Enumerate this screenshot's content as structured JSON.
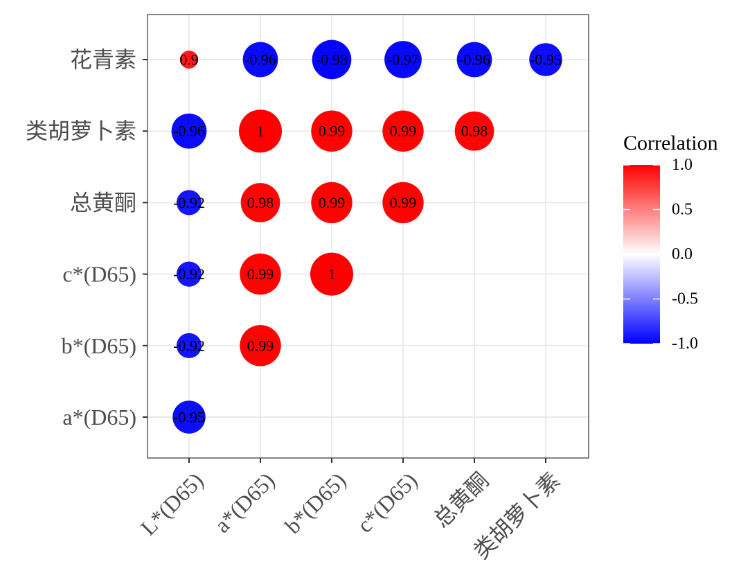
{
  "chart_data": {
    "type": "heatmap",
    "title": "",
    "x_categories": [
      "L*(D65)",
      "a*(D65)",
      "b*(D65)",
      "c*(D65)",
      "总黄酮",
      "类胡萝卜素"
    ],
    "y_categories": [
      "a*(D65)",
      "b*(D65)",
      "c*(D65)",
      "总黄酮",
      "类胡萝卜素",
      "花青素"
    ],
    "cells": [
      {
        "x": "L*(D65)",
        "y": "a*(D65)",
        "value": -0.95,
        "label": "-0.95"
      },
      {
        "x": "L*(D65)",
        "y": "b*(D65)",
        "value": -0.92,
        "label": "-0.92"
      },
      {
        "x": "a*(D65)",
        "y": "b*(D65)",
        "value": 0.99,
        "label": "0.99"
      },
      {
        "x": "L*(D65)",
        "y": "c*(D65)",
        "value": -0.92,
        "label": "-0.92"
      },
      {
        "x": "a*(D65)",
        "y": "c*(D65)",
        "value": 0.99,
        "label": "0.99"
      },
      {
        "x": "b*(D65)",
        "y": "c*(D65)",
        "value": 1.0,
        "label": "1"
      },
      {
        "x": "L*(D65)",
        "y": "总黄酮",
        "value": -0.92,
        "label": "-0.92"
      },
      {
        "x": "a*(D65)",
        "y": "总黄酮",
        "value": 0.98,
        "label": "0.98"
      },
      {
        "x": "b*(D65)",
        "y": "总黄酮",
        "value": 0.99,
        "label": "0.99"
      },
      {
        "x": "c*(D65)",
        "y": "总黄酮",
        "value": 0.99,
        "label": "0.99"
      },
      {
        "x": "L*(D65)",
        "y": "类胡萝卜素",
        "value": -0.96,
        "label": "-0.96"
      },
      {
        "x": "a*(D65)",
        "y": "类胡萝卜素",
        "value": 1.0,
        "label": "1"
      },
      {
        "x": "b*(D65)",
        "y": "类胡萝卜素",
        "value": 0.99,
        "label": "0.99"
      },
      {
        "x": "c*(D65)",
        "y": "类胡萝卜素",
        "value": 0.99,
        "label": "0.99"
      },
      {
        "x": "总黄酮",
        "y": "类胡萝卜素",
        "value": 0.98,
        "label": "0.98"
      },
      {
        "x": "L*(D65)",
        "y": "花青素",
        "value": 0.9,
        "label": "0.9"
      },
      {
        "x": "a*(D65)",
        "y": "花青素",
        "value": -0.96,
        "label": "-0.96"
      },
      {
        "x": "b*(D65)",
        "y": "花青素",
        "value": -0.98,
        "label": "-0.98"
      },
      {
        "x": "c*(D65)",
        "y": "花青素",
        "value": -0.97,
        "label": "-0.97"
      },
      {
        "x": "总黄酮",
        "y": "花青素",
        "value": -0.96,
        "label": "-0.96"
      },
      {
        "x": "类胡萝卜素",
        "y": "花青素",
        "value": -0.95,
        "label": "-0.95"
      }
    ],
    "legend": {
      "title": "Correlation",
      "range": [
        -1,
        1
      ],
      "ticks": [
        "1.0",
        "0.5",
        "0.0",
        "-0.5",
        "-1.0"
      ],
      "tick_values": [
        1.0,
        0.5,
        0.0,
        -0.5,
        -1.0
      ],
      "placement": "right"
    },
    "colors": {
      "positive": "#ff0000",
      "midpoint": "#ffffff",
      "negative": "#0000ff"
    },
    "grid": true,
    "encoding": "circle size and color by correlation"
  }
}
